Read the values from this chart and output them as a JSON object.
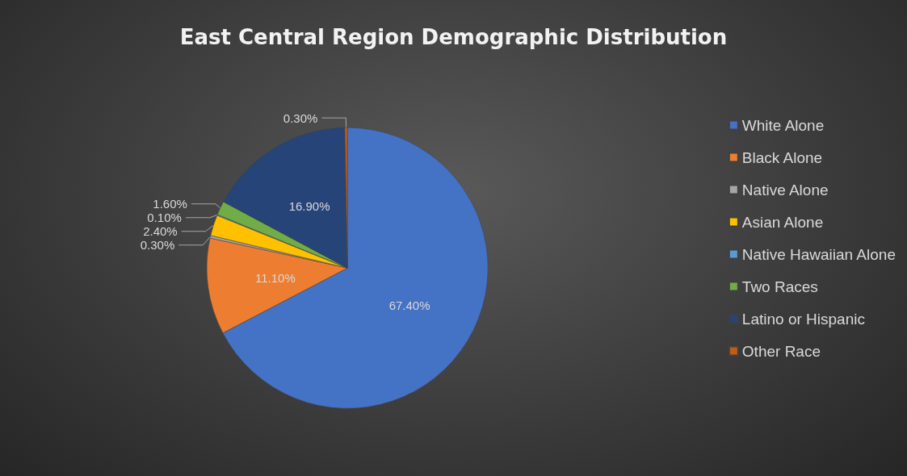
{
  "chart_data": {
    "type": "pie",
    "title": "East Central Region Demographic Distribution",
    "categories": [
      "White Alone",
      "Black Alone",
      "Native Alone",
      "Asian Alone",
      "Native Hawaiian Alone",
      "Two Races",
      "Latino or Hispanic",
      "Other Race"
    ],
    "values": [
      67.4,
      11.1,
      0.3,
      2.4,
      0.1,
      1.6,
      16.9,
      0.3
    ],
    "value_labels": [
      "67.40%",
      "11.10%",
      "0.30%",
      "2.40%",
      "0.10%",
      "1.60%",
      "16.90%",
      "0.30%"
    ],
    "colors": [
      "#4472c4",
      "#ed7d31",
      "#a5a5a5",
      "#ffc000",
      "#5b9bd5",
      "#70ad47",
      "#264478",
      "#c55a11"
    ],
    "legend": "right"
  }
}
